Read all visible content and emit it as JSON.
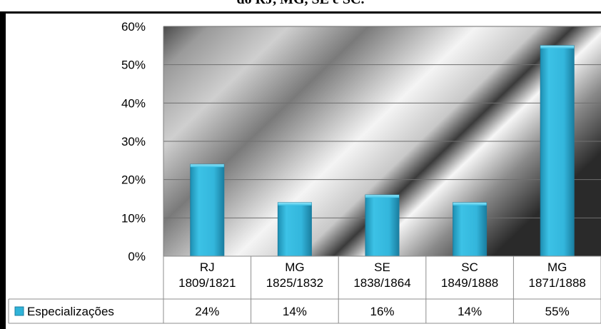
{
  "caption": "do RJ, MG, SE e SC.",
  "chart_data": {
    "type": "bar",
    "categories": [
      [
        "RJ",
        "1809/1821"
      ],
      [
        "MG",
        "1825/1832"
      ],
      [
        "SE",
        "1838/1864"
      ],
      [
        "SC",
        "1849/1888"
      ],
      [
        "MG",
        "1871/1888"
      ]
    ],
    "series": [
      {
        "name": "Especializações",
        "values": [
          24,
          14,
          16,
          14,
          55
        ],
        "labels": [
          "24%",
          "14%",
          "16%",
          "14%",
          "55%"
        ],
        "color": "#2fb3d8"
      }
    ],
    "yticks": [
      "0%",
      "10%",
      "20%",
      "30%",
      "40%",
      "50%",
      "60%"
    ],
    "ylim": [
      0,
      60
    ],
    "grid": true,
    "legend": "data-table",
    "title": "",
    "xlabel": "",
    "ylabel": ""
  }
}
